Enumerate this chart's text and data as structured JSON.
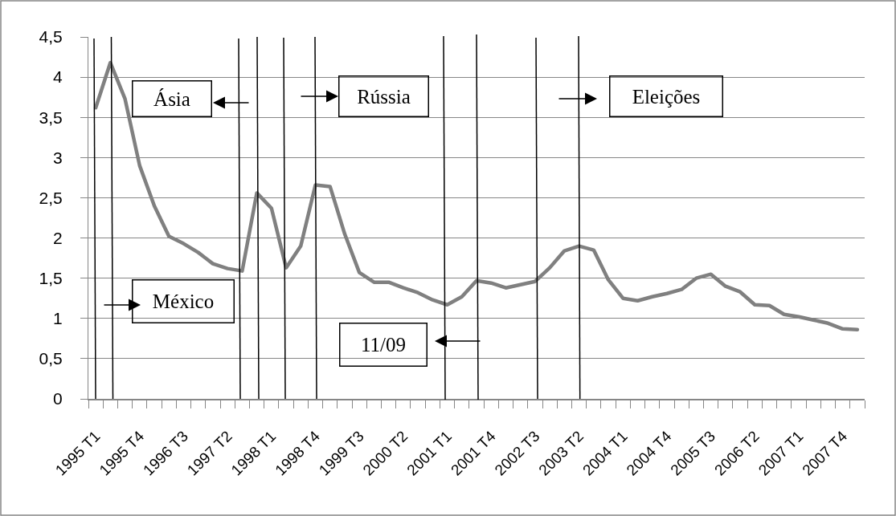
{
  "chart_data": {
    "type": "line",
    "categories": [
      "1995 T1",
      null,
      null,
      "1995 T4",
      null,
      null,
      "1996 T3",
      null,
      null,
      "1997 T2",
      null,
      null,
      "1998 T1",
      null,
      null,
      "1998 T4",
      null,
      null,
      "1999 T3",
      null,
      null,
      "2000 T2",
      null,
      null,
      "2001 T1",
      null,
      null,
      "2001 T4",
      null,
      null,
      "2002 T3",
      null,
      null,
      "2003 T2",
      null,
      null,
      "2004 T1",
      null,
      null,
      "2004 T4",
      null,
      null,
      "2005 T3",
      null,
      null,
      "2006 T2",
      null,
      null,
      "2007 T1",
      null,
      null,
      "2007 T4",
      null
    ],
    "series": [
      {
        "color": "#808080",
        "values": [
          3.62,
          4.18,
          3.73,
          2.9,
          2.4,
          2.02,
          1.93,
          1.82,
          1.68,
          1.62,
          1.59,
          2.56,
          2.37,
          1.63,
          1.9,
          2.66,
          2.64,
          2.05,
          1.57,
          1.45,
          1.45,
          1.38,
          1.32,
          1.23,
          1.17,
          1.27,
          1.47,
          1.44,
          1.38,
          1.42,
          1.46,
          1.63,
          1.84,
          1.9,
          1.85,
          1.48,
          1.25,
          1.22,
          1.27,
          1.31,
          1.36,
          1.5,
          1.55,
          1.4,
          1.33,
          1.17,
          1.16,
          1.05,
          1.02,
          0.98,
          0.94,
          0.87,
          0.86
        ]
      }
    ],
    "ylim": [
      0,
      4.5
    ],
    "yticks": [
      0,
      {
        "value": 0.5,
        "label": "0,5"
      },
      1,
      {
        "value": 1.5,
        "label": "1,5"
      },
      2,
      {
        "value": 2.5,
        "label": "2,5"
      },
      3,
      {
        "value": 3.5,
        "label": "3,5"
      },
      4,
      {
        "value": 4.5,
        "label": "4,5"
      }
    ],
    "grid": "y",
    "line_style": "solid",
    "annotations": [
      "México",
      "Ásia",
      "Rússia",
      "11/09",
      "Eleições"
    ]
  }
}
